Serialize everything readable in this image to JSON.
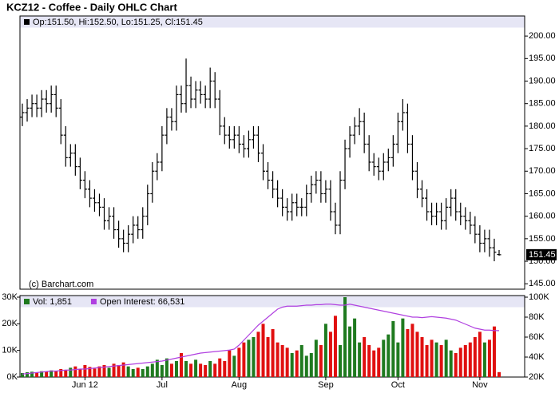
{
  "chart_data": [
    {
      "type": "ohlc",
      "title": "KCZ12 - Coffee - Daily OHLC Chart",
      "legend": "Op:151.50, Hi:152.50, Lo:151.25, Cl:151.45",
      "annotation": "(c) Barchart.com",
      "last_label": "151.45",
      "color": "#000000",
      "ylim": [
        143.8,
        204.1
      ],
      "yticks": [
        {
          "value": 145,
          "label": "145.00"
        },
        {
          "value": 150,
          "label": "150.00"
        },
        {
          "value": 155,
          "label": "155.00"
        },
        {
          "value": 160,
          "label": "160.00"
        },
        {
          "value": 165,
          "label": "165.00"
        },
        {
          "value": 170,
          "label": "170.00"
        },
        {
          "value": 175,
          "label": "175.00"
        },
        {
          "value": 180,
          "label": "180.00"
        },
        {
          "value": 185,
          "label": "185.00"
        },
        {
          "value": 190,
          "label": "190.00"
        },
        {
          "value": 195,
          "label": "195.00"
        },
        {
          "value": 200,
          "label": "200.00"
        }
      ],
      "open": [
        182,
        183,
        184,
        185,
        184,
        186,
        185,
        187,
        184,
        178,
        173,
        174,
        171,
        168,
        166,
        164,
        163,
        162,
        159,
        160,
        157,
        155,
        154,
        156,
        158,
        157,
        160,
        165,
        170,
        172,
        178,
        182,
        181,
        187,
        185,
        189,
        186,
        188,
        187,
        186,
        190,
        186,
        180,
        178,
        177,
        178,
        176,
        175,
        177,
        178,
        174,
        170,
        168,
        166,
        164,
        162,
        161,
        163,
        162,
        162,
        165,
        167,
        168,
        165,
        166,
        161,
        158,
        168,
        175,
        178,
        180,
        181,
        176,
        172,
        171,
        170,
        172,
        173,
        176,
        181,
        183,
        176,
        170,
        166,
        164,
        161,
        160,
        161,
        159,
        162,
        164,
        161,
        160,
        159,
        158,
        156,
        154,
        155,
        153,
        151.5
      ],
      "high": [
        185,
        186,
        187,
        187,
        188,
        188,
        189,
        189,
        186,
        180,
        176,
        176,
        173,
        170,
        168,
        166,
        165,
        164,
        162,
        162,
        159,
        157,
        158,
        160,
        160,
        162,
        167,
        172,
        174,
        180,
        184,
        184,
        189,
        189,
        195,
        191,
        190,
        190,
        189,
        193,
        192,
        188,
        182,
        180,
        180,
        180,
        178,
        179,
        180,
        180,
        176,
        172,
        170,
        168,
        166,
        164,
        165,
        165,
        164,
        167,
        169,
        170,
        170,
        168,
        168,
        163,
        170,
        177,
        180,
        182,
        184,
        183,
        178,
        174,
        173,
        174,
        175,
        178,
        183,
        186,
        185,
        178,
        172,
        168,
        166,
        163,
        163,
        163,
        164,
        166,
        166,
        163,
        162,
        161,
        160,
        158,
        157,
        157,
        155,
        152.5
      ],
      "low": [
        180,
        181,
        182,
        182,
        182,
        183,
        183,
        182,
        176,
        171,
        171,
        169,
        166,
        164,
        162,
        161,
        160,
        157,
        157,
        155,
        153,
        152,
        152,
        154,
        155,
        155,
        158,
        163,
        168,
        170,
        176,
        179,
        179,
        183,
        183,
        184,
        184,
        185,
        184,
        184,
        184,
        178,
        176,
        175,
        175,
        174,
        173,
        173,
        175,
        172,
        168,
        166,
        164,
        162,
        160,
        159,
        159,
        160,
        160,
        160,
        163,
        165,
        163,
        163,
        159,
        156,
        156,
        166,
        173,
        176,
        178,
        174,
        170,
        169,
        168,
        168,
        170,
        171,
        174,
        179,
        174,
        168,
        164,
        162,
        159,
        158,
        158,
        157,
        157,
        160,
        159,
        158,
        157,
        156,
        154,
        152,
        152,
        151,
        150,
        151.25
      ],
      "close": [
        183,
        184,
        185,
        184,
        186,
        185,
        187,
        184,
        178,
        173,
        174,
        171,
        168,
        166,
        164,
        163,
        162,
        159,
        160,
        157,
        155,
        154,
        156,
        158,
        157,
        160,
        165,
        170,
        172,
        178,
        182,
        181,
        187,
        185,
        189,
        186,
        188,
        187,
        186,
        190,
        186,
        180,
        178,
        177,
        178,
        176,
        175,
        177,
        178,
        174,
        170,
        168,
        166,
        164,
        162,
        161,
        163,
        162,
        162,
        165,
        167,
        168,
        165,
        166,
        161,
        158,
        168,
        175,
        178,
        180,
        181,
        176,
        172,
        171,
        170,
        172,
        173,
        176,
        181,
        183,
        176,
        170,
        166,
        164,
        161,
        160,
        161,
        159,
        162,
        164,
        161,
        160,
        159,
        158,
        156,
        154,
        155,
        153,
        152,
        151.45
      ]
    },
    {
      "type": "bar",
      "categories": [
        null,
        null,
        null,
        null,
        null,
        null,
        null,
        null,
        null,
        null,
        null,
        null,
        null,
        "Jun 12",
        null,
        null,
        null,
        null,
        null,
        null,
        null,
        null,
        null,
        null,
        null,
        null,
        null,
        null,
        null,
        "Jul",
        null,
        null,
        null,
        null,
        null,
        null,
        null,
        null,
        null,
        null,
        null,
        null,
        null,
        null,
        null,
        "Aug",
        null,
        null,
        null,
        null,
        null,
        null,
        null,
        null,
        null,
        null,
        null,
        null,
        null,
        null,
        null,
        null,
        null,
        "Sep",
        null,
        null,
        null,
        null,
        null,
        null,
        null,
        null,
        null,
        null,
        null,
        null,
        null,
        null,
        "Oct",
        null,
        null,
        null,
        null,
        null,
        null,
        null,
        null,
        null,
        null,
        null,
        null,
        null,
        null,
        null,
        null,
        "Nov",
        null,
        null,
        null,
        null
      ],
      "up_color": "#1f7a1f",
      "down_color": "#e01010",
      "ylim": [
        0,
        30000
      ],
      "yticks": [
        {
          "value": 0,
          "label": "0K"
        },
        {
          "value": 10000,
          "label": "10K"
        },
        {
          "value": 20000,
          "label": "20K"
        },
        {
          "value": 30000,
          "label": "30K"
        }
      ],
      "y2lim": [
        20000,
        100000
      ],
      "y2ticks": [
        {
          "value": 20000,
          "label": "20K"
        },
        {
          "value": 40000,
          "label": "40K"
        },
        {
          "value": 60000,
          "label": "60K"
        },
        {
          "value": 80000,
          "label": "80K"
        },
        {
          "value": 100000,
          "label": "100K"
        }
      ],
      "series": [
        {
          "name": "Vol: 1,851",
          "color": "#1f7a1f",
          "values": [
            1500,
            1800,
            2000,
            1700,
            2200,
            2000,
            2500,
            2300,
            3000,
            2500,
            3500,
            4000,
            3000,
            4500,
            3800,
            3200,
            4000,
            4500,
            3500,
            5000,
            4500,
            5500,
            4000,
            3000,
            3500,
            3000,
            4000,
            5000,
            6500,
            4500,
            7000,
            5000,
            6000,
            9000,
            6000,
            5000,
            6500,
            5000,
            4500,
            6000,
            5000,
            7000,
            6000,
            10000,
            8000,
            11000,
            13000,
            14000,
            15000,
            17000,
            20000,
            15000,
            18000,
            13000,
            12000,
            11000,
            9000,
            10000,
            12000,
            8000,
            9000,
            14000,
            12000,
            20000,
            17000,
            23000,
            12000,
            30000,
            19000,
            22000,
            13000,
            15000,
            12000,
            10000,
            11000,
            14000,
            16000,
            21000,
            13000,
            22000,
            18000,
            20000,
            17000,
            15000,
            12000,
            14000,
            13000,
            12000,
            14000,
            10000,
            9000,
            11000,
            12000,
            13000,
            15000,
            17000,
            13000,
            14000,
            19000,
            1851
          ]
        },
        {
          "name": "Open Interest: 66,531",
          "color": "#b040e0",
          "axis": "y2",
          "values": [
            23000,
            23500,
            24000,
            24500,
            25000,
            25500,
            26000,
            26000,
            26500,
            27000,
            27000,
            27500,
            28000,
            28000,
            28500,
            29000,
            29500,
            30000,
            30500,
            31000,
            31500,
            32000,
            32500,
            33000,
            33500,
            34000,
            34500,
            35000,
            35500,
            36000,
            37000,
            38000,
            39000,
            40000,
            41000,
            42000,
            43000,
            44000,
            44500,
            45000,
            45500,
            46000,
            46500,
            47000,
            48000,
            52000,
            57000,
            62000,
            67000,
            72000,
            76000,
            80000,
            84000,
            88000,
            90000,
            91000,
            91000,
            91000,
            91500,
            92000,
            92000,
            92500,
            92500,
            93000,
            93000,
            92500,
            92000,
            92000,
            93000,
            92000,
            91000,
            90000,
            89000,
            88000,
            87000,
            86000,
            85000,
            84000,
            83000,
            82000,
            81000,
            80000,
            80000,
            79500,
            80000,
            80500,
            80000,
            79500,
            79000,
            78000,
            77000,
            75000,
            73000,
            71000,
            69000,
            68000,
            67000,
            67000,
            66500,
            66531
          ]
        }
      ]
    }
  ]
}
